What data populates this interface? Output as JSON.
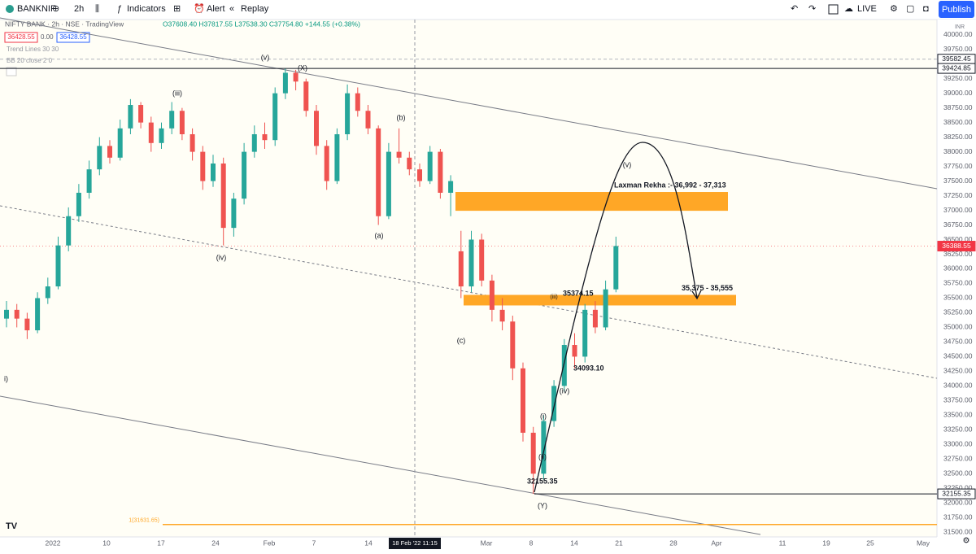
{
  "toolbar": {
    "symbol": "BANKNIF",
    "interval": "2h",
    "indicators": "Indicators",
    "alert": "Alert",
    "replay": "Replay",
    "live": "LIVE",
    "publish": "Publish"
  },
  "legend": {
    "title": "NIFTY BANK · 2h · NSE · TradingView",
    "ohlc": "O37608.40 H37817.55 L37538.30 C37754.80 +144.55 (+0.38%)",
    "bid": "36428.55",
    "spread": "0.00",
    "ask": "36428.55",
    "study1": "Trend Lines 30 30",
    "study2": "BB 20 close 2 0"
  },
  "chart_data": {
    "type": "candlestick",
    "currency": "INR",
    "up_color": "#26a69a",
    "down_color": "#ef5350",
    "ylim": [
      31420,
      40260
    ],
    "yticks": [
      {
        "value": 40000,
        "label": "40000.00"
      },
      {
        "value": 39750,
        "label": "39750.00"
      },
      {
        "value": 39500,
        "label": "39500.00"
      },
      {
        "value": 39250,
        "label": "39250.00"
      },
      {
        "value": 39000,
        "label": "39000.00"
      },
      {
        "value": 38750,
        "label": "38750.00"
      },
      {
        "value": 38500,
        "label": "38500.00"
      },
      {
        "value": 38250,
        "label": "38250.00"
      },
      {
        "value": 38000,
        "label": "38000.00"
      },
      {
        "value": 37750,
        "label": "37750.00"
      },
      {
        "value": 37500,
        "label": "37500.00"
      },
      {
        "value": 37250,
        "label": "37250.00"
      },
      {
        "value": 37000,
        "label": "37000.00"
      },
      {
        "value": 36750,
        "label": "36750.00"
      },
      {
        "value": 36500,
        "label": "36500.00"
      },
      {
        "value": 36250,
        "label": "36250.00"
      },
      {
        "value": 36000,
        "label": "36000.00"
      },
      {
        "value": 35750,
        "label": "35750.00"
      },
      {
        "value": 35500,
        "label": "35500.00"
      },
      {
        "value": 35250,
        "label": "35250.00"
      },
      {
        "value": 35000,
        "label": "35000.00"
      },
      {
        "value": 34750,
        "label": "34750.00"
      },
      {
        "value": 34500,
        "label": "34500.00"
      },
      {
        "value": 34250,
        "label": "34250.00"
      },
      {
        "value": 34000,
        "label": "34000.00"
      },
      {
        "value": 33750,
        "label": "33750.00"
      },
      {
        "value": 33500,
        "label": "33500.00"
      },
      {
        "value": 33250,
        "label": "33250.00"
      },
      {
        "value": 33000,
        "label": "33000.00"
      },
      {
        "value": 32750,
        "label": "32750.00"
      },
      {
        "value": 32500,
        "label": "32500.00"
      },
      {
        "value": 32250,
        "label": "32250.00"
      },
      {
        "value": 32000,
        "label": "32000.00"
      },
      {
        "value": 31750,
        "label": "31750.00"
      },
      {
        "value": 31500,
        "label": "31500.00"
      }
    ],
    "time_labels": [
      "2022",
      "10",
      "17",
      "24",
      "Feb",
      "7",
      "14",
      "18 Feb '22  11:15",
      "Mar",
      "8",
      "14",
      "21",
      "28",
      "Apr",
      "11",
      "19",
      "25",
      "May"
    ],
    "candles": [
      [
        35150,
        35450,
        35000,
        35300
      ],
      [
        35300,
        35400,
        35000,
        35150
      ],
      [
        35150,
        35250,
        34800,
        34950
      ],
      [
        34950,
        35600,
        34900,
        35500
      ],
      [
        35500,
        35850,
        35400,
        35700
      ],
      [
        35700,
        36550,
        35650,
        36400
      ],
      [
        36400,
        37050,
        36300,
        36900
      ],
      [
        36900,
        37450,
        36800,
        37300
      ],
      [
        37300,
        37850,
        37200,
        37700
      ],
      [
        37700,
        38250,
        37600,
        38100
      ],
      [
        38100,
        38200,
        37800,
        37900
      ],
      [
        37900,
        38550,
        37850,
        38400
      ],
      [
        38400,
        38900,
        38300,
        38800
      ],
      [
        38800,
        38850,
        38400,
        38500
      ],
      [
        38500,
        38600,
        38000,
        38150
      ],
      [
        38150,
        38500,
        38050,
        38400
      ],
      [
        38400,
        38850,
        38300,
        38700
      ],
      [
        38700,
        38750,
        38200,
        38300
      ],
      [
        38300,
        38400,
        37850,
        38000
      ],
      [
        38000,
        38100,
        37350,
        37500
      ],
      [
        37500,
        37950,
        37400,
        37800
      ],
      [
        37800,
        37900,
        36400,
        36700
      ],
      [
        36700,
        37300,
        36550,
        37200
      ],
      [
        37200,
        38150,
        37100,
        38000
      ],
      [
        38000,
        38450,
        37900,
        38300
      ],
      [
        38300,
        38500,
        38050,
        38200
      ],
      [
        38200,
        39100,
        38100,
        39000
      ],
      [
        39000,
        39420,
        38900,
        39350
      ],
      [
        39350,
        39400,
        39050,
        39200
      ],
      [
        39200,
        39250,
        38600,
        38700
      ],
      [
        38700,
        38800,
        37950,
        38100
      ],
      [
        38100,
        38200,
        37350,
        37500
      ],
      [
        37500,
        38400,
        37450,
        38300
      ],
      [
        38300,
        39150,
        38200,
        39000
      ],
      [
        39000,
        39100,
        38600,
        38700
      ],
      [
        38700,
        38800,
        38300,
        38400
      ],
      [
        38400,
        38450,
        36750,
        36900
      ],
      [
        36900,
        38150,
        36850,
        38000
      ],
      [
        38000,
        38400,
        37800,
        37900
      ],
      [
        37900,
        38000,
        37600,
        37700
      ],
      [
        37700,
        37800,
        37400,
        37500
      ],
      [
        37500,
        38100,
        37450,
        38000
      ],
      [
        38000,
        38050,
        37200,
        37300
      ],
      [
        37300,
        37600,
        36900,
        37500
      ],
      [
        36300,
        36650,
        35500,
        35700
      ],
      [
        35700,
        36650,
        35600,
        36500
      ],
      [
        36500,
        36600,
        35700,
        35800
      ],
      [
        35800,
        35900,
        35100,
        35300
      ],
      [
        35300,
        35500,
        34950,
        35100
      ],
      [
        35100,
        35200,
        34100,
        34300
      ],
      [
        34300,
        34400,
        33050,
        33200
      ],
      [
        33200,
        33300,
        32155,
        32500
      ],
      [
        32500,
        33500,
        32400,
        33400
      ],
      [
        33400,
        34100,
        33300,
        34000
      ],
      [
        34000,
        34800,
        33900,
        34700
      ],
      [
        34700,
        34900,
        34300,
        34500
      ],
      [
        34500,
        35400,
        34400,
        35300
      ],
      [
        35300,
        35450,
        34900,
        35000
      ],
      [
        35000,
        35800,
        34950,
        35650
      ],
      [
        35650,
        36550,
        35600,
        36390
      ]
    ],
    "zones": [
      {
        "label": "Laxman Rekha :- 36,992 - 37,313",
        "low": 36992,
        "high": 37313,
        "color": "#ffa726"
      },
      {
        "label": "35,375 - 35,555",
        "low": 35375,
        "high": 35555,
        "color": "#ffa726"
      }
    ],
    "price_lines": [
      {
        "value": 39582.45,
        "label": "39582.45",
        "style": "dashed"
      },
      {
        "value": 39424.85,
        "label": "39424.85",
        "style": "solid"
      },
      {
        "value": 32155.35,
        "label": "32155.35",
        "style": "solid"
      }
    ],
    "last_price": {
      "value": 36388.55,
      "label": "36388.55",
      "color": "#f23645"
    },
    "fib_line": {
      "value": 31631.65,
      "label": "1(31631.65)",
      "color": "#ffa726"
    },
    "wave_labels": [
      "(v)",
      "(X)",
      "(iii)",
      "(b)",
      "(a)",
      "(iv)",
      "(c)",
      "(iv)",
      "(v)",
      "(Y)",
      "(i)",
      "(ii)",
      "i)",
      "(iii)"
    ],
    "annotations": [
      {
        "label": "35374.15",
        "value": 35374.15
      },
      {
        "label": "34093.10",
        "value": 34093.1
      },
      {
        "label": "32155.35",
        "value": 32155.35
      }
    ]
  }
}
